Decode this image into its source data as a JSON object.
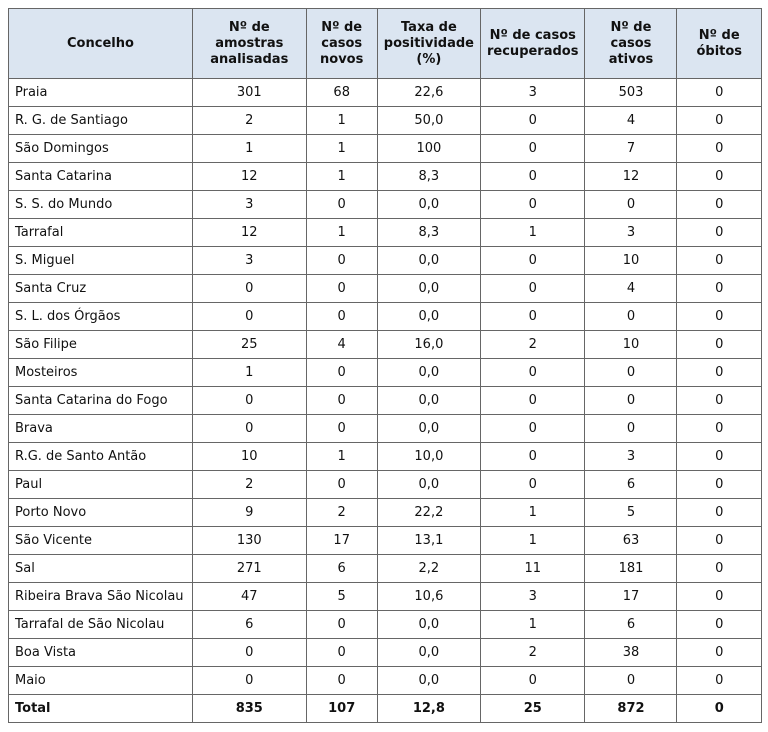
{
  "table": {
    "header": [
      "Concelho",
      "Nº de amostras analisadas",
      "Nº de casos novos",
      "Taxa de positividade (%)",
      "Nº de casos recuperados",
      "Nº de casos ativos",
      "Nº de óbitos"
    ],
    "rows": [
      [
        "Praia",
        "301",
        "68",
        "22,6",
        "3",
        "503",
        "0"
      ],
      [
        "R. G. de Santiago",
        "2",
        "1",
        "50,0",
        "0",
        "4",
        "0"
      ],
      [
        "São Domingos",
        "1",
        "1",
        "100",
        "0",
        "7",
        "0"
      ],
      [
        "Santa Catarina",
        "12",
        "1",
        "8,3",
        "0",
        "12",
        "0"
      ],
      [
        "S. S. do Mundo",
        "3",
        "0",
        "0,0",
        "0",
        "0",
        "0"
      ],
      [
        "Tarrafal",
        "12",
        "1",
        "8,3",
        "1",
        "3",
        "0"
      ],
      [
        "S. Miguel",
        "3",
        "0",
        "0,0",
        "0",
        "10",
        "0"
      ],
      [
        "Santa Cruz",
        "0",
        "0",
        "0,0",
        "0",
        "4",
        "0"
      ],
      [
        "S. L. dos Órgãos",
        "0",
        "0",
        "0,0",
        "0",
        "0",
        "0"
      ],
      [
        "São Filipe",
        "25",
        "4",
        "16,0",
        "2",
        "10",
        "0"
      ],
      [
        "Mosteiros",
        "1",
        "0",
        "0,0",
        "0",
        "0",
        "0"
      ],
      [
        "Santa Catarina do Fogo",
        "0",
        "0",
        "0,0",
        "0",
        "0",
        "0"
      ],
      [
        "Brava",
        "0",
        "0",
        "0,0",
        "0",
        "0",
        "0"
      ],
      [
        "R.G. de Santo Antão",
        "10",
        "1",
        "10,0",
        "0",
        "3",
        "0"
      ],
      [
        "Paul",
        "2",
        "0",
        "0,0",
        "0",
        "6",
        "0"
      ],
      [
        "Porto Novo",
        "9",
        "2",
        "22,2",
        "1",
        "5",
        "0"
      ],
      [
        "São Vicente",
        "130",
        "17",
        "13,1",
        "1",
        "63",
        "0"
      ],
      [
        "Sal",
        "271",
        "6",
        "2,2",
        "11",
        "181",
        "0"
      ],
      [
        "Ribeira Brava São Nicolau",
        "47",
        "5",
        "10,6",
        "3",
        "17",
        "0"
      ],
      [
        "Tarrafal de São Nicolau",
        "6",
        "0",
        "0,0",
        "1",
        "6",
        "0"
      ],
      [
        "Boa Vista",
        "0",
        "0",
        "0,0",
        "2",
        "38",
        "0"
      ],
      [
        "Maio",
        "0",
        "0",
        "0,0",
        "0",
        "0",
        "0"
      ]
    ],
    "total": [
      "Total",
      "835",
      "107",
      "12,8",
      "25",
      "872",
      "0"
    ]
  }
}
